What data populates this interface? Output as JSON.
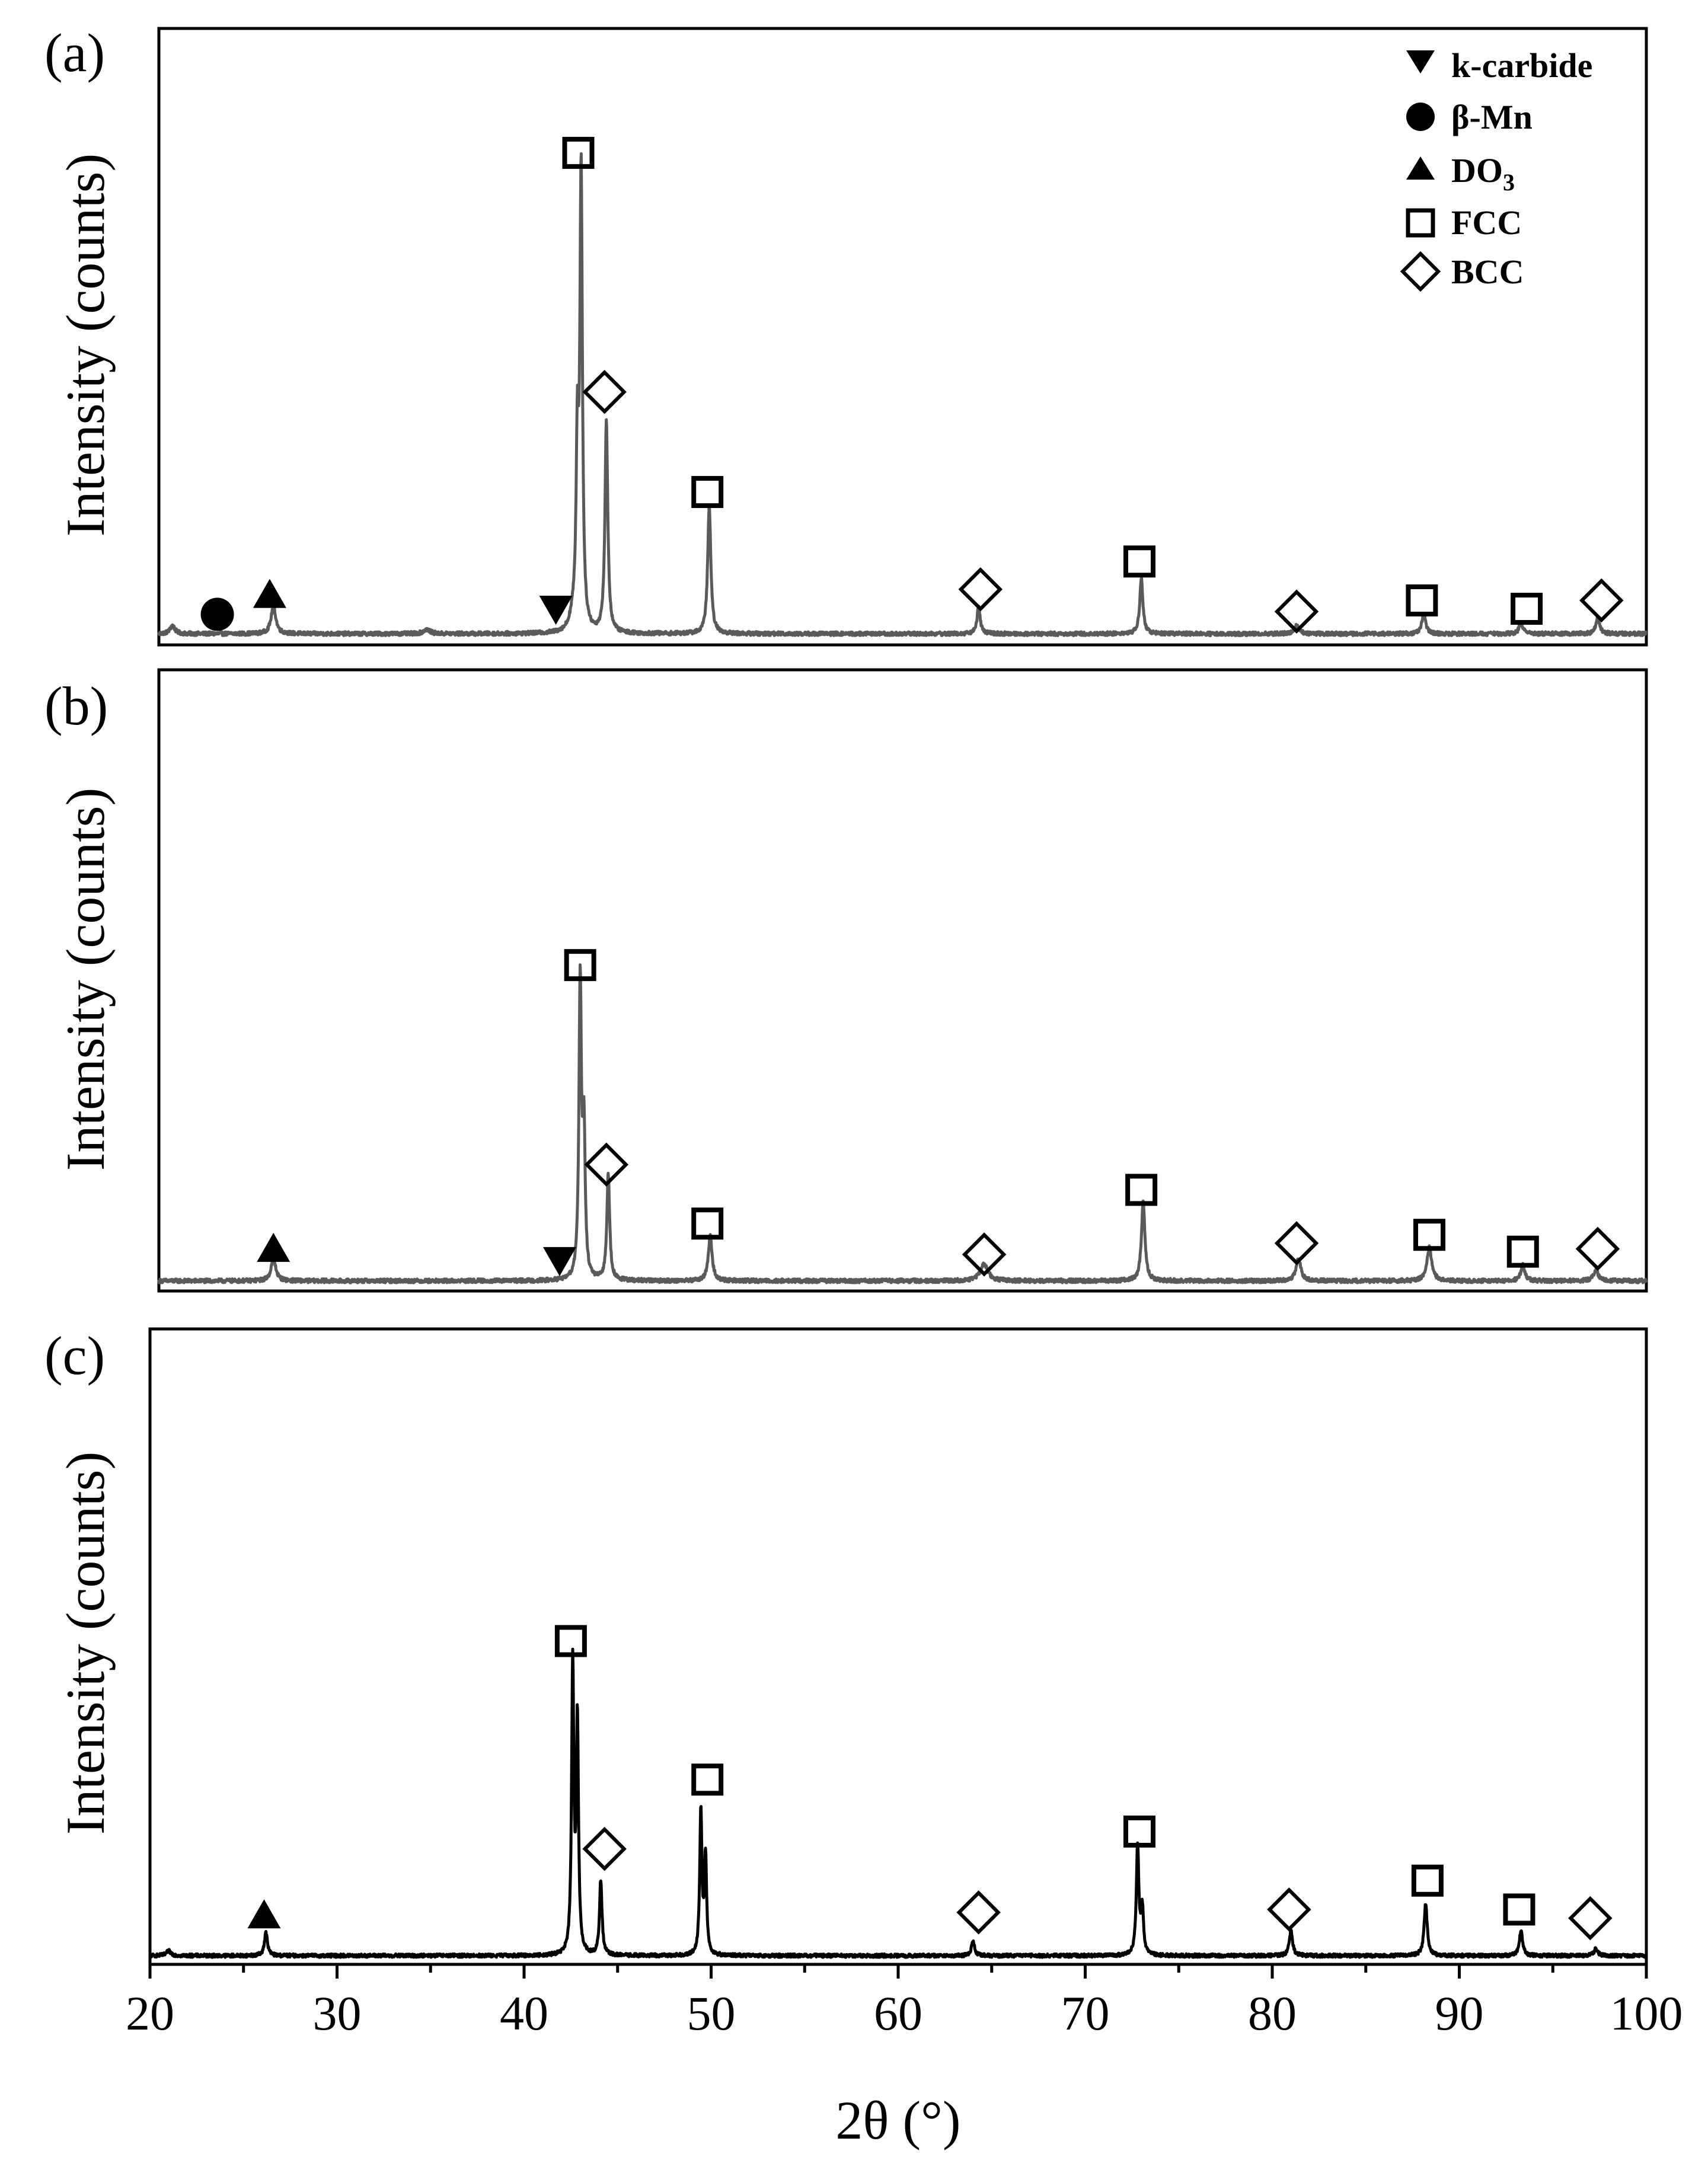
{
  "chart_data": {
    "type": "line",
    "title": "",
    "xlabel": "2θ (°)",
    "ylabel": "Intensity (counts)",
    "xlim": [
      20,
      100
    ],
    "x_ticks": [
      20,
      30,
      40,
      50,
      60,
      70,
      80,
      90,
      100
    ],
    "legend": {
      "placement": "top-right of panel (a)",
      "entries": [
        {
          "label": "k-carbide",
          "marker": "down-triangle-filled"
        },
        {
          "label": "β-Mn",
          "marker": "circle-filled"
        },
        {
          "label": "DO",
          "subscript": "3",
          "marker": "up-triangle-filled"
        },
        {
          "label": "FCC",
          "marker": "square-open"
        },
        {
          "label": "BCC",
          "marker": "diamond-open"
        }
      ]
    },
    "panels": [
      {
        "label": "(a)",
        "color": "#5a5a5a",
        "ylim": [
          0,
          100
        ],
        "baseline": 2.0,
        "noise": 0.35,
        "peaks": [
          {
            "x": 21.2,
            "h": 1.5,
            "w": 0.15
          },
          {
            "x": 26.6,
            "h": 5.0,
            "w": 0.15
          },
          {
            "x": 34.8,
            "h": 0.8,
            "w": 0.2
          },
          {
            "x": 42.6,
            "h": 2.0,
            "w": 0.2
          },
          {
            "x": 42.85,
            "h": 32.0,
            "w": 0.08
          },
          {
            "x": 43.05,
            "h": 82.0,
            "w": 0.08
          },
          {
            "x": 44.4,
            "h": 38.0,
            "w": 0.09
          },
          {
            "x": 49.9,
            "h": 23.0,
            "w": 0.1
          },
          {
            "x": 64.3,
            "h": 5.0,
            "w": 0.1
          },
          {
            "x": 73.0,
            "h": 10.0,
            "w": 0.1
          },
          {
            "x": 81.3,
            "h": 1.5,
            "w": 0.15
          },
          {
            "x": 88.1,
            "h": 3.5,
            "w": 0.12
          },
          {
            "x": 93.3,
            "h": 2.0,
            "w": 0.12
          },
          {
            "x": 97.4,
            "h": 3.0,
            "w": 0.12
          }
        ],
        "markers": [
          {
            "type": "circle",
            "phase": "β-Mn",
            "x": 23.6,
            "y": 5.5
          },
          {
            "type": "up-triangle",
            "phase": "DO3",
            "x": 26.4,
            "y": 9.0
          },
          {
            "type": "down-triangle",
            "phase": "k-carbide",
            "x": 41.7,
            "y": 6.5
          },
          {
            "type": "square",
            "phase": "FCC",
            "x": 42.9,
            "y": 88.5
          },
          {
            "type": "diamond",
            "phase": "BCC",
            "x": 44.3,
            "y": 45.5
          },
          {
            "type": "square",
            "phase": "FCC",
            "x": 49.8,
            "y": 27.5
          },
          {
            "type": "diamond",
            "phase": "BCC",
            "x": 64.4,
            "y": 10.0
          },
          {
            "type": "square",
            "phase": "FCC",
            "x": 72.9,
            "y": 15.0
          },
          {
            "type": "diamond",
            "phase": "BCC",
            "x": 81.3,
            "y": 6.0
          },
          {
            "type": "square",
            "phase": "FCC",
            "x": 88.0,
            "y": 8.0
          },
          {
            "type": "square",
            "phase": "FCC",
            "x": 93.6,
            "y": 6.5
          },
          {
            "type": "diamond",
            "phase": "BCC",
            "x": 97.6,
            "y": 8.0
          }
        ]
      },
      {
        "label": "(b)",
        "color": "#5a5a5a",
        "ylim": [
          0,
          100
        ],
        "baseline": 1.8,
        "noise": 0.35,
        "peaks": [
          {
            "x": 26.6,
            "h": 4.0,
            "w": 0.15
          },
          {
            "x": 43.0,
            "h": 53.0,
            "w": 0.08
          },
          {
            "x": 43.2,
            "h": 25.0,
            "w": 0.08
          },
          {
            "x": 44.5,
            "h": 19.0,
            "w": 0.09
          },
          {
            "x": 49.95,
            "h": 8.0,
            "w": 0.12
          },
          {
            "x": 64.6,
            "h": 3.0,
            "w": 0.25
          },
          {
            "x": 73.1,
            "h": 14.0,
            "w": 0.11
          },
          {
            "x": 81.4,
            "h": 4.0,
            "w": 0.15
          },
          {
            "x": 88.4,
            "h": 6.0,
            "w": 0.15
          },
          {
            "x": 93.4,
            "h": 3.0,
            "w": 0.12
          },
          {
            "x": 97.3,
            "h": 2.0,
            "w": 0.15
          }
        ],
        "markers": [
          {
            "type": "up-triangle",
            "phase": "DO3",
            "x": 26.6,
            "y": 7.5
          },
          {
            "type": "down-triangle",
            "phase": "k-carbide",
            "x": 41.9,
            "y": 5.5
          },
          {
            "type": "square",
            "phase": "FCC",
            "x": 43.0,
            "y": 58.0
          },
          {
            "type": "diamond",
            "phase": "BCC",
            "x": 44.4,
            "y": 22.5
          },
          {
            "type": "square",
            "phase": "FCC",
            "x": 49.8,
            "y": 12.0
          },
          {
            "type": "diamond",
            "phase": "BCC",
            "x": 64.6,
            "y": 6.5
          },
          {
            "type": "square",
            "phase": "FCC",
            "x": 73.0,
            "y": 18.0
          },
          {
            "type": "diamond",
            "phase": "BCC",
            "x": 81.3,
            "y": 8.5
          },
          {
            "type": "square",
            "phase": "FCC",
            "x": 88.4,
            "y": 10.0
          },
          {
            "type": "square",
            "phase": "FCC",
            "x": 93.4,
            "y": 7.0
          },
          {
            "type": "diamond",
            "phase": "BCC",
            "x": 97.4,
            "y": 7.5
          }
        ]
      },
      {
        "label": "(c)",
        "color": "#000000",
        "ylim": [
          0,
          100
        ],
        "baseline": 1.5,
        "noise": 0.3,
        "peaks": [
          {
            "x": 21.0,
            "h": 0.8,
            "w": 0.15
          },
          {
            "x": 26.2,
            "h": 4.0,
            "w": 0.1
          },
          {
            "x": 42.6,
            "h": 50.0,
            "w": 0.07
          },
          {
            "x": 42.85,
            "h": 40.0,
            "w": 0.07
          },
          {
            "x": 44.1,
            "h": 13.0,
            "w": 0.08
          },
          {
            "x": 49.45,
            "h": 25.0,
            "w": 0.07
          },
          {
            "x": 49.7,
            "h": 17.0,
            "w": 0.07
          },
          {
            "x": 64.0,
            "h": 2.5,
            "w": 0.1
          },
          {
            "x": 72.8,
            "h": 19.0,
            "w": 0.08
          },
          {
            "x": 73.05,
            "h": 8.0,
            "w": 0.08
          },
          {
            "x": 81.0,
            "h": 4.5,
            "w": 0.1
          },
          {
            "x": 88.2,
            "h": 9.0,
            "w": 0.1
          },
          {
            "x": 93.3,
            "h": 4.5,
            "w": 0.1
          },
          {
            "x": 97.3,
            "h": 1.2,
            "w": 0.12
          }
        ],
        "markers": [
          {
            "type": "up-triangle",
            "phase": "DO3",
            "x": 26.1,
            "y": 8.5
          },
          {
            "type": "square",
            "phase": "FCC",
            "x": 42.5,
            "y": 56.0
          },
          {
            "type": "diamond",
            "phase": "BCC",
            "x": 44.3,
            "y": 20.0
          },
          {
            "type": "square",
            "phase": "FCC",
            "x": 49.8,
            "y": 32.0
          },
          {
            "type": "diamond",
            "phase": "BCC",
            "x": 64.3,
            "y": 9.0
          },
          {
            "type": "square",
            "phase": "FCC",
            "x": 72.9,
            "y": 23.0
          },
          {
            "type": "diamond",
            "phase": "BCC",
            "x": 80.9,
            "y": 9.5
          },
          {
            "type": "square",
            "phase": "FCC",
            "x": 88.3,
            "y": 14.5
          },
          {
            "type": "square",
            "phase": "FCC",
            "x": 93.2,
            "y": 9.5
          },
          {
            "type": "diamond",
            "phase": "BCC",
            "x": 97.0,
            "y": 8.0
          }
        ]
      }
    ]
  }
}
